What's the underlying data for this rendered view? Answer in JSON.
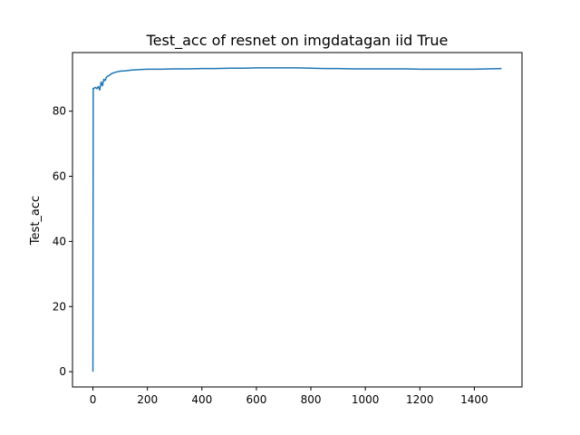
{
  "chart_data": {
    "type": "line",
    "title": "Test_acc of resnet on imgdatagan iid True",
    "xlabel": "",
    "ylabel": "Test_acc",
    "xlim": [
      -75,
      1575
    ],
    "ylim": [
      -4.7,
      98.0
    ],
    "x_ticks": [
      0,
      200,
      400,
      600,
      800,
      1000,
      1200,
      1400
    ],
    "y_ticks": [
      0,
      20,
      40,
      60,
      80
    ],
    "grid": false,
    "legend": "none",
    "line_color": "#1f77b4",
    "series": [
      {
        "x": [
          0,
          1,
          3,
          5,
          10,
          15,
          20,
          25,
          30,
          35,
          40,
          45,
          50,
          60,
          70,
          80,
          90,
          100,
          120,
          140,
          160,
          180,
          200,
          250,
          300,
          350,
          400,
          450,
          500,
          550,
          600,
          650,
          700,
          750,
          800,
          850,
          900,
          950,
          1000,
          1050,
          1100,
          1150,
          1200,
          1250,
          1300,
          1350,
          1400,
          1450,
          1500
        ],
        "values": [
          0.0,
          87.0,
          86.9,
          87.1,
          87.3,
          86.9,
          87.6,
          86.5,
          89.0,
          87.8,
          89.8,
          89.4,
          90.5,
          91.0,
          91.6,
          91.9,
          92.1,
          92.3,
          92.4,
          92.6,
          92.7,
          92.8,
          92.9,
          92.9,
          93.0,
          93.0,
          93.1,
          93.1,
          93.2,
          93.2,
          93.3,
          93.3,
          93.3,
          93.3,
          93.2,
          93.1,
          93.1,
          93.0,
          93.0,
          93.0,
          93.0,
          93.0,
          92.9,
          92.9,
          92.9,
          92.9,
          92.9,
          93.0,
          93.1
        ]
      }
    ]
  }
}
